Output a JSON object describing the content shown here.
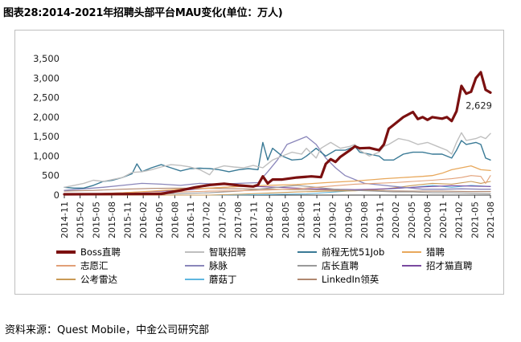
{
  "title": "图表28:2014-2021年招聘头部平台MAU变化(单位：万人)",
  "source": "资料来源：Quest Mobile，中金公司研究部",
  "chart_data": {
    "type": "line",
    "ylim": [
      0,
      3500
    ],
    "yticks": [
      "0",
      "500",
      "1,000",
      "1,500",
      "2,000",
      "2,500",
      "3,000",
      "3,500"
    ],
    "xticks": [
      "2014-11",
      "2015-02",
      "2015-05",
      "2015-08",
      "2015-11",
      "2016-02",
      "2016-05",
      "2016-08",
      "2016-11",
      "2017-02",
      "2017-05",
      "2017-08",
      "2017-11",
      "2018-02",
      "2018-05",
      "2018-08",
      "2018-11",
      "2019-02",
      "2019-05",
      "2019-08",
      "2019-11",
      "2020-02",
      "2020-05",
      "2020-08",
      "2020-11",
      "2021-02",
      "2021-05",
      "2021-08"
    ],
    "annotation": "2,629",
    "series": [
      {
        "name": "Boss直聘",
        "color": "#7b1010",
        "width": 3.2,
        "values": [
          [
            0,
            20
          ],
          [
            20,
            30
          ],
          [
            24,
            120
          ],
          [
            27,
            200
          ],
          [
            30,
            260
          ],
          [
            33,
            290
          ],
          [
            36,
            250
          ],
          [
            39,
            220
          ],
          [
            40,
            260
          ],
          [
            41,
            480
          ],
          [
            42,
            300
          ],
          [
            43,
            400
          ],
          [
            45,
            400
          ],
          [
            48,
            450
          ],
          [
            51,
            480
          ],
          [
            53,
            460
          ],
          [
            54,
            800
          ],
          [
            55,
            920
          ],
          [
            56,
            850
          ],
          [
            57,
            980
          ],
          [
            59,
            1150
          ],
          [
            60,
            1250
          ],
          [
            61,
            1200
          ],
          [
            63,
            1210
          ],
          [
            64,
            1180
          ],
          [
            65,
            1150
          ],
          [
            66,
            1300
          ],
          [
            67,
            1700
          ],
          [
            68,
            1800
          ],
          [
            70,
            2000
          ],
          [
            72,
            2130
          ],
          [
            73,
            1950
          ],
          [
            74,
            2000
          ],
          [
            75,
            1930
          ],
          [
            76,
            2000
          ],
          [
            78,
            1960
          ],
          [
            79,
            2000
          ],
          [
            80,
            1900
          ],
          [
            81,
            2150
          ],
          [
            82,
            2800
          ],
          [
            83,
            2600
          ],
          [
            84,
            2650
          ],
          [
            85,
            3000
          ],
          [
            86,
            3150
          ],
          [
            87,
            2700
          ],
          [
            88,
            2629
          ]
        ]
      },
      {
        "name": "智联招聘",
        "color": "#bfbfbf",
        "width": 1.4,
        "values": [
          [
            0,
            200
          ],
          [
            2,
            250
          ],
          [
            4,
            300
          ],
          [
            6,
            380
          ],
          [
            8,
            350
          ],
          [
            10,
            400
          ],
          [
            12,
            450
          ],
          [
            14,
            580
          ],
          [
            16,
            600
          ],
          [
            18,
            650
          ],
          [
            20,
            720
          ],
          [
            22,
            780
          ],
          [
            24,
            760
          ],
          [
            26,
            720
          ],
          [
            28,
            650
          ],
          [
            30,
            520
          ],
          [
            31,
            680
          ],
          [
            33,
            750
          ],
          [
            35,
            720
          ],
          [
            37,
            700
          ],
          [
            39,
            760
          ],
          [
            41,
            700
          ],
          [
            42,
            800
          ],
          [
            43,
            900
          ],
          [
            45,
            1000
          ],
          [
            47,
            1100
          ],
          [
            49,
            1050
          ],
          [
            50,
            1200
          ],
          [
            52,
            950
          ],
          [
            53,
            1200
          ],
          [
            55,
            1350
          ],
          [
            57,
            1200
          ],
          [
            59,
            1250
          ],
          [
            60,
            1300
          ],
          [
            61,
            1150
          ],
          [
            63,
            1000
          ],
          [
            65,
            1100
          ],
          [
            66,
            1250
          ],
          [
            67,
            1300
          ],
          [
            69,
            1450
          ],
          [
            71,
            1400
          ],
          [
            73,
            1300
          ],
          [
            75,
            1350
          ],
          [
            77,
            1250
          ],
          [
            79,
            1150
          ],
          [
            80,
            1050
          ],
          [
            81,
            1350
          ],
          [
            82,
            1600
          ],
          [
            83,
            1400
          ],
          [
            85,
            1450
          ],
          [
            86,
            1500
          ],
          [
            87,
            1450
          ],
          [
            88,
            1580
          ]
        ]
      },
      {
        "name": "前程无忧51Job",
        "color": "#3a7a96",
        "width": 1.4,
        "values": [
          [
            0,
            200
          ],
          [
            2,
            180
          ],
          [
            4,
            180
          ],
          [
            6,
            250
          ],
          [
            8,
            350
          ],
          [
            10,
            380
          ],
          [
            12,
            450
          ],
          [
            14,
            550
          ],
          [
            15,
            800
          ],
          [
            16,
            600
          ],
          [
            18,
            700
          ],
          [
            20,
            780
          ],
          [
            22,
            700
          ],
          [
            24,
            620
          ],
          [
            26,
            680
          ],
          [
            28,
            690
          ],
          [
            30,
            680
          ],
          [
            32,
            650
          ],
          [
            34,
            600
          ],
          [
            36,
            650
          ],
          [
            38,
            680
          ],
          [
            40,
            650
          ],
          [
            41,
            1350
          ],
          [
            42,
            900
          ],
          [
            43,
            1200
          ],
          [
            45,
            1000
          ],
          [
            46,
            950
          ],
          [
            47,
            900
          ],
          [
            49,
            920
          ],
          [
            50,
            1000
          ],
          [
            52,
            1200
          ],
          [
            54,
            1000
          ],
          [
            56,
            1150
          ],
          [
            58,
            1150
          ],
          [
            60,
            1250
          ],
          [
            61,
            1100
          ],
          [
            63,
            1050
          ],
          [
            65,
            1000
          ],
          [
            66,
            900
          ],
          [
            68,
            900
          ],
          [
            70,
            1050
          ],
          [
            72,
            1100
          ],
          [
            74,
            1100
          ],
          [
            76,
            1050
          ],
          [
            78,
            1050
          ],
          [
            80,
            950
          ],
          [
            81,
            1150
          ],
          [
            82,
            1400
          ],
          [
            83,
            1300
          ],
          [
            85,
            1350
          ],
          [
            86,
            1300
          ],
          [
            87,
            950
          ],
          [
            88,
            900
          ]
        ]
      },
      {
        "name": "猎聘",
        "color": "#e8a85c",
        "width": 1.3,
        "values": [
          [
            0,
            20
          ],
          [
            6,
            30
          ],
          [
            12,
            60
          ],
          [
            18,
            100
          ],
          [
            24,
            150
          ],
          [
            30,
            180
          ],
          [
            36,
            220
          ],
          [
            42,
            250
          ],
          [
            48,
            270
          ],
          [
            54,
            320
          ],
          [
            60,
            360
          ],
          [
            64,
            400
          ],
          [
            66,
            420
          ],
          [
            70,
            450
          ],
          [
            74,
            480
          ],
          [
            76,
            500
          ],
          [
            78,
            560
          ],
          [
            80,
            650
          ],
          [
            82,
            700
          ],
          [
            84,
            750
          ],
          [
            86,
            650
          ],
          [
            88,
            630
          ]
        ]
      },
      {
        "name": "志愿汇",
        "color": "#e2a078",
        "width": 1.1,
        "values": [
          [
            0,
            0
          ],
          [
            6,
            20
          ],
          [
            12,
            40
          ],
          [
            18,
            60
          ],
          [
            24,
            80
          ],
          [
            30,
            100
          ],
          [
            36,
            110
          ],
          [
            42,
            130
          ],
          [
            48,
            160
          ],
          [
            54,
            220
          ],
          [
            60,
            280
          ],
          [
            64,
            300
          ],
          [
            68,
            320
          ],
          [
            72,
            350
          ],
          [
            76,
            380
          ],
          [
            80,
            420
          ],
          [
            82,
            450
          ],
          [
            84,
            500
          ],
          [
            86,
            480
          ],
          [
            87,
            300
          ],
          [
            88,
            500
          ]
        ]
      },
      {
        "name": "脉脉",
        "color": "#8a86ba",
        "width": 1.3,
        "values": [
          [
            0,
            120
          ],
          [
            4,
            160
          ],
          [
            8,
            200
          ],
          [
            12,
            250
          ],
          [
            16,
            300
          ],
          [
            20,
            280
          ],
          [
            24,
            250
          ],
          [
            28,
            300
          ],
          [
            32,
            280
          ],
          [
            36,
            300
          ],
          [
            40,
            320
          ],
          [
            42,
            600
          ],
          [
            44,
            900
          ],
          [
            46,
            1300
          ],
          [
            48,
            1400
          ],
          [
            50,
            1500
          ],
          [
            52,
            1300
          ],
          [
            54,
            950
          ],
          [
            56,
            700
          ],
          [
            58,
            500
          ],
          [
            60,
            400
          ],
          [
            62,
            300
          ],
          [
            66,
            250
          ],
          [
            70,
            200
          ],
          [
            74,
            150
          ],
          [
            78,
            150
          ],
          [
            82,
            160
          ],
          [
            86,
            150
          ],
          [
            88,
            150
          ]
        ]
      },
      {
        "name": "店长直聘",
        "color": "#9a9a9a",
        "width": 1.1,
        "values": [
          [
            0,
            10
          ],
          [
            8,
            20
          ],
          [
            16,
            30
          ],
          [
            24,
            40
          ],
          [
            30,
            60
          ],
          [
            36,
            100
          ],
          [
            40,
            150
          ],
          [
            44,
            200
          ],
          [
            48,
            250
          ],
          [
            52,
            200
          ],
          [
            56,
            150
          ],
          [
            60,
            120
          ],
          [
            64,
            100
          ],
          [
            68,
            80
          ],
          [
            72,
            80
          ],
          [
            76,
            60
          ],
          [
            80,
            60
          ],
          [
            84,
            50
          ],
          [
            88,
            40
          ]
        ]
      },
      {
        "name": "招才猫直聘",
        "color": "#7a4aa0",
        "width": 1.1,
        "values": [
          [
            0,
            20
          ],
          [
            8,
            40
          ],
          [
            16,
            80
          ],
          [
            24,
            120
          ],
          [
            30,
            180
          ],
          [
            36,
            220
          ],
          [
            40,
            220
          ],
          [
            44,
            200
          ],
          [
            48,
            180
          ],
          [
            52,
            160
          ],
          [
            56,
            150
          ],
          [
            60,
            140
          ],
          [
            64,
            150
          ],
          [
            68,
            170
          ],
          [
            72,
            200
          ],
          [
            76,
            220
          ],
          [
            80,
            240
          ],
          [
            84,
            230
          ],
          [
            88,
            220
          ]
        ]
      },
      {
        "name": "公考雷达",
        "color": "#c99a56",
        "width": 1.1,
        "values": [
          [
            0,
            0
          ],
          [
            30,
            0
          ],
          [
            36,
            20
          ],
          [
            42,
            50
          ],
          [
            48,
            80
          ],
          [
            54,
            100
          ],
          [
            60,
            110
          ],
          [
            66,
            150
          ],
          [
            72,
            250
          ],
          [
            76,
            300
          ],
          [
            80,
            280
          ],
          [
            84,
            350
          ],
          [
            86,
            300
          ],
          [
            88,
            350
          ]
        ]
      },
      {
        "name": "蘑菇丁",
        "color": "#5fb7e0",
        "width": 1.1,
        "values": [
          [
            0,
            0
          ],
          [
            30,
            0
          ],
          [
            40,
            10
          ],
          [
            50,
            30
          ],
          [
            56,
            80
          ],
          [
            60,
            120
          ],
          [
            66,
            150
          ],
          [
            72,
            200
          ],
          [
            76,
            250
          ],
          [
            80,
            200
          ],
          [
            84,
            250
          ],
          [
            88,
            220
          ]
        ]
      },
      {
        "name": "LinkedIn领英",
        "color": "#b08870",
        "width": 1.1,
        "values": [
          [
            0,
            100
          ],
          [
            6,
            120
          ],
          [
            12,
            150
          ],
          [
            18,
            170
          ],
          [
            24,
            180
          ],
          [
            30,
            170
          ],
          [
            36,
            160
          ],
          [
            42,
            150
          ],
          [
            48,
            140
          ],
          [
            54,
            130
          ],
          [
            60,
            120
          ],
          [
            66,
            110
          ],
          [
            72,
            100
          ],
          [
            78,
            100
          ],
          [
            84,
            90
          ],
          [
            88,
            90
          ]
        ]
      }
    ]
  }
}
